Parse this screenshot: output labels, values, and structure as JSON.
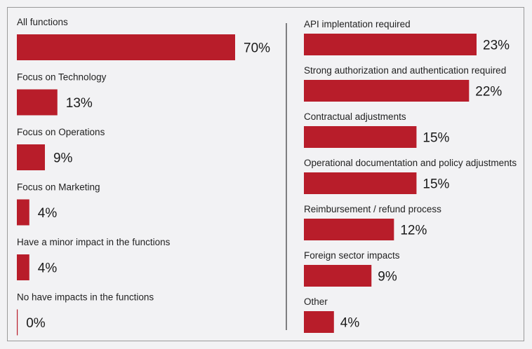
{
  "chart_data": [
    {
      "type": "bar",
      "orientation": "horizontal",
      "categories": [
        "All functions",
        "Focus on Technology",
        "Focus on Operations",
        "Focus on Marketing",
        "Have a minor impact in the functions",
        "No have impacts in the functions"
      ],
      "values": [
        70,
        13,
        9,
        4,
        4,
        0
      ],
      "value_labels": [
        "70%",
        "13%",
        "9%",
        "4%",
        "4%",
        "0%"
      ],
      "unit": "%",
      "xlim": [
        0,
        70
      ],
      "bar_color": "#b81d2a"
    },
    {
      "type": "bar",
      "orientation": "horizontal",
      "categories": [
        "API implentation required",
        "Strong authorization and authentication required",
        "Contractual adjustments",
        "Operational documentation and policy adjustments",
        "Reimbursement / refund process",
        "Foreign sector impacts",
        "Other"
      ],
      "values": [
        23,
        22,
        15,
        15,
        12,
        9,
        4
      ],
      "value_labels": [
        "23%",
        "22%",
        "15%",
        "15%",
        "12%",
        "9%",
        "4%"
      ],
      "unit": "%",
      "xlim": [
        0,
        23
      ],
      "bar_color": "#b81d2a"
    }
  ]
}
